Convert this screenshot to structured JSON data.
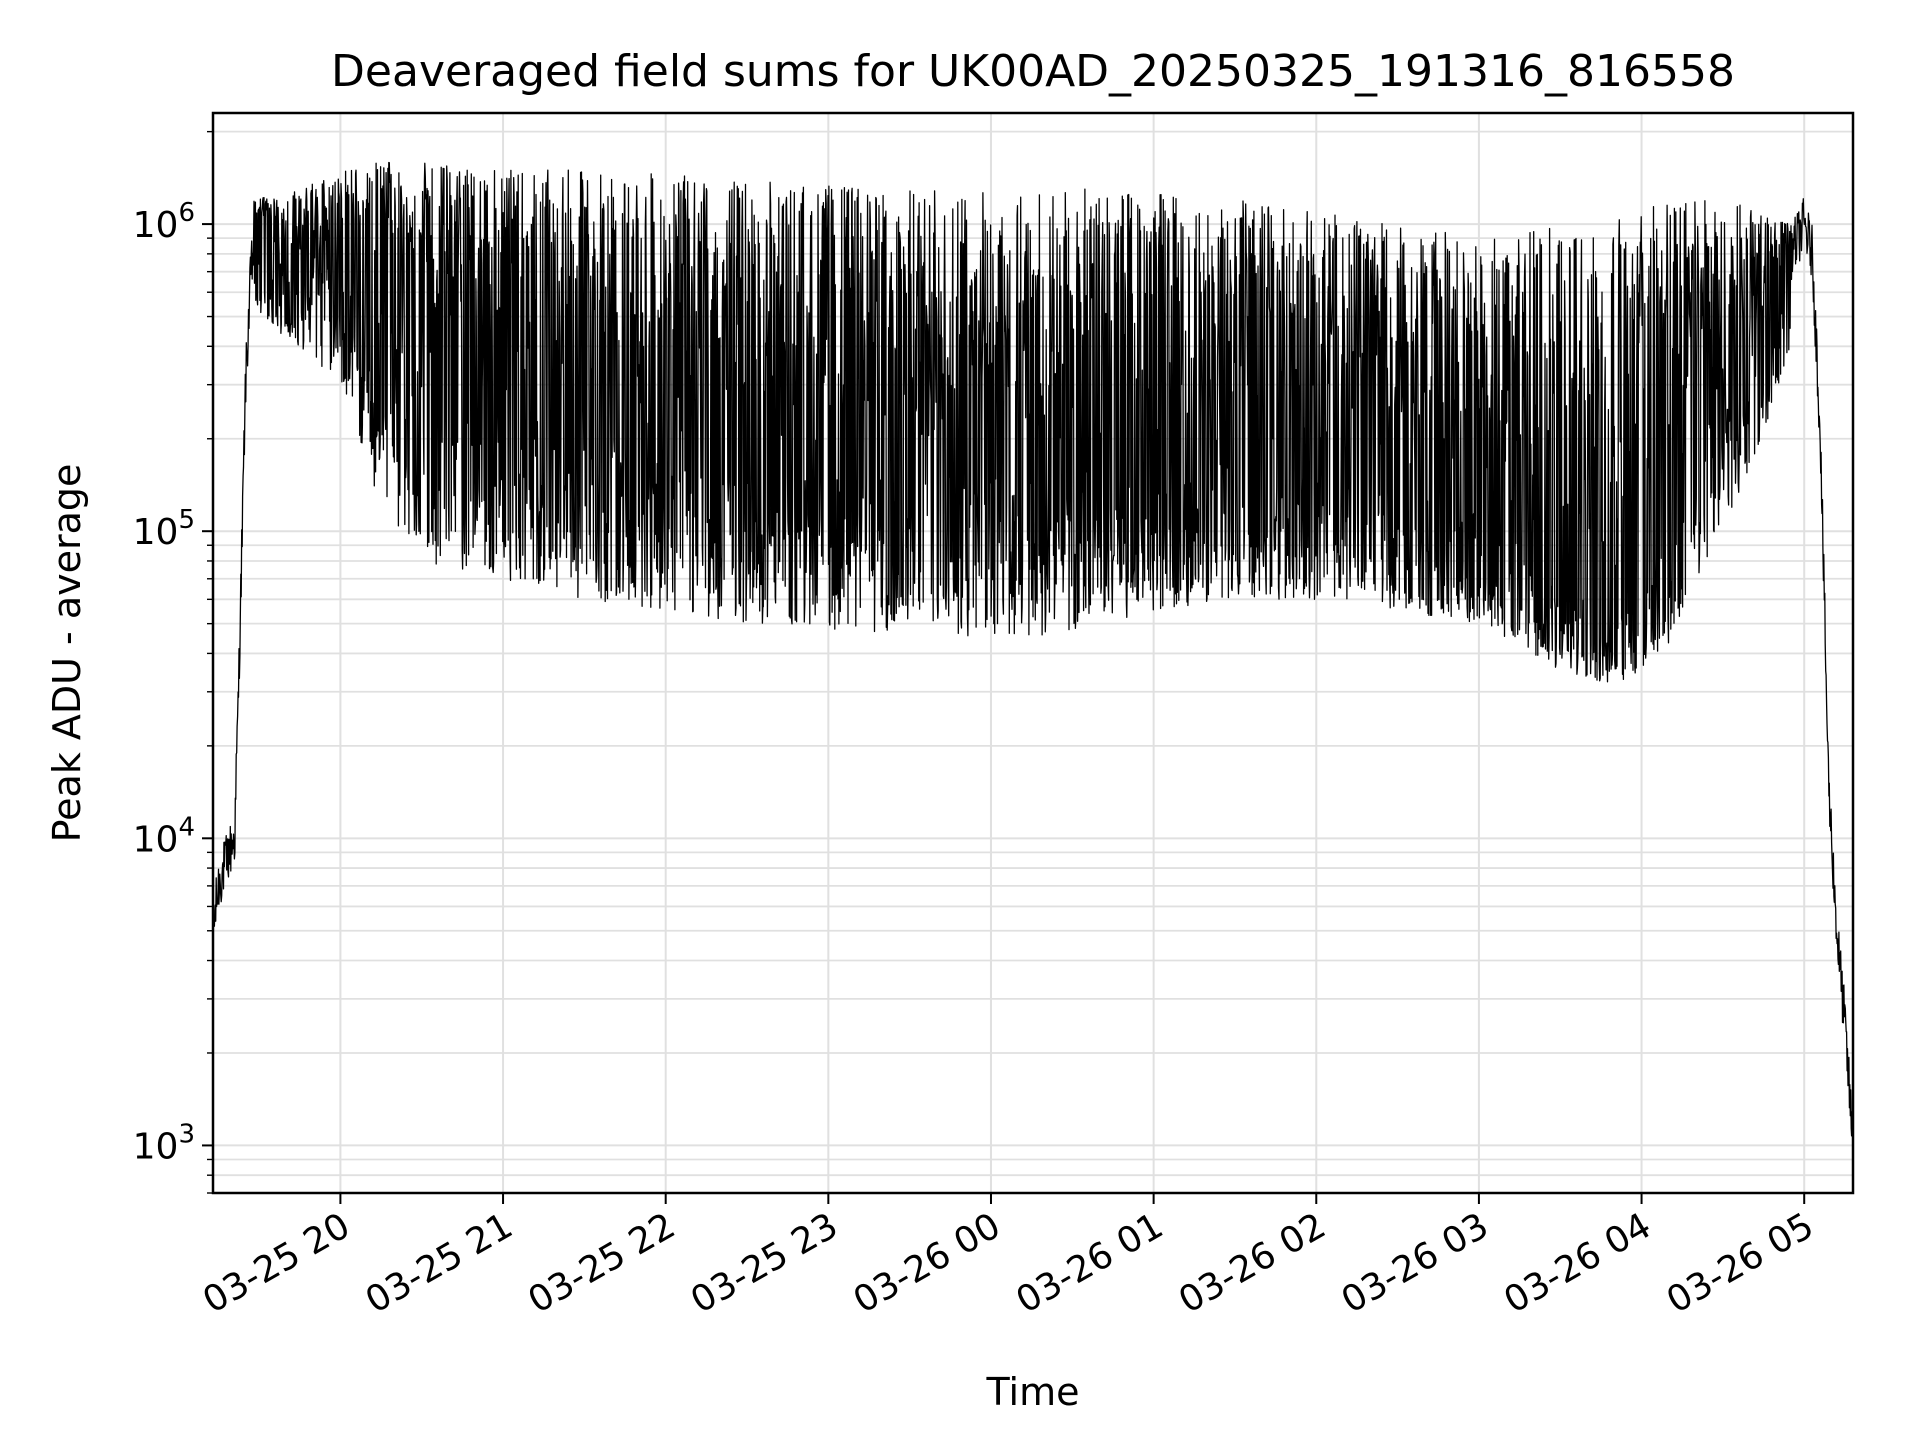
{
  "chart_data": {
    "type": "line",
    "title": "Deaveraged field sums for UK00AD_20250325_191316_816558",
    "xlabel": "Time",
    "ylabel": "Peak ADU - average",
    "y_scale": "log",
    "ylim": [
      700,
      2300000
    ],
    "xlim": [
      "2025-03-25 19:13",
      "2025-03-26 05:18"
    ],
    "grid": true,
    "legend": "none",
    "colors": {
      "line": "#000000",
      "grid": "#e0e0e0",
      "axes": "#000000"
    },
    "x_tick_labels": [
      "03-25 20",
      "03-25 21",
      "03-25 22",
      "03-25 23",
      "03-26 00",
      "03-26 01",
      "03-26 02",
      "03-26 03",
      "03-26 04",
      "03-26 05"
    ],
    "x_tick_values": [
      "2025-03-25 20:00",
      "2025-03-25 21:00",
      "2025-03-25 22:00",
      "2025-03-25 23:00",
      "2025-03-26 00:00",
      "2025-03-26 01:00",
      "2025-03-26 02:00",
      "2025-03-26 03:00",
      "2025-03-26 04:00",
      "2025-03-26 05:00"
    ],
    "y_ticks": [
      {
        "value": 1000,
        "base": "10",
        "exp": "3"
      },
      {
        "value": 10000,
        "base": "10",
        "exp": "4"
      },
      {
        "value": 100000,
        "base": "10",
        "exp": "5"
      },
      {
        "value": 1000000,
        "base": "10",
        "exp": "6"
      }
    ],
    "series": [
      {
        "color": "#000000",
        "x": [
          "2025-03-25 19:13",
          "2025-03-25 19:15",
          "2025-03-25 19:17",
          "2025-03-25 19:19",
          "2025-03-25 19:21",
          "2025-03-25 19:23",
          "2025-03-25 19:25",
          "2025-03-25 19:27",
          "2025-03-25 19:30",
          "2025-03-25 19:35",
          "2025-03-25 19:40",
          "2025-03-25 19:45",
          "2025-03-25 19:50",
          "2025-03-25 20:00",
          "2025-03-25 20:15",
          "2025-03-25 20:30",
          "2025-03-25 21:00",
          "2025-03-25 21:30",
          "2025-03-25 22:00",
          "2025-03-25 22:30",
          "2025-03-25 23:00",
          "2025-03-25 23:30",
          "2025-03-26 00:00",
          "2025-03-26 00:30",
          "2025-03-26 01:00",
          "2025-03-26 01:30",
          "2025-03-26 02:00",
          "2025-03-26 02:30",
          "2025-03-26 03:00",
          "2025-03-26 03:30",
          "2025-03-26 03:50",
          "2025-03-26 04:15",
          "2025-03-26 04:30",
          "2025-03-26 04:45",
          "2025-03-26 04:55",
          "2025-03-26 05:00",
          "2025-03-26 05:03",
          "2025-03-26 05:06",
          "2025-03-26 05:09",
          "2025-03-26 05:12",
          "2025-03-26 05:15",
          "2025-03-26 05:18"
        ],
        "y": [
          5000,
          7000,
          8000,
          9000,
          10000,
          50000,
          300000,
          700000,
          1100000,
          800000,
          500000,
          600000,
          800000,
          800000,
          600000,
          500000,
          350000,
          250000,
          200000,
          180000,
          170000,
          160000,
          160000,
          170000,
          180000,
          170000,
          170000,
          150000,
          120000,
          70000,
          55000,
          130000,
          300000,
          500000,
          800000,
          1000000,
          800000,
          200000,
          15000,
          5000,
          2500,
          1000
        ]
      }
    ],
    "noise_bands": [
      {
        "x": [
          "2025-03-25 19:28",
          "2025-03-25 19:45",
          "2025-03-25 20:00",
          "2025-03-25 20:15",
          "2025-03-25 20:30",
          "2025-03-25 21:00",
          "2025-03-25 21:30",
          "2025-03-25 22:00",
          "2025-03-25 22:30",
          "2025-03-25 23:00",
          "2025-03-25 23:30",
          "2025-03-26 00:00",
          "2025-03-26 00:30",
          "2025-03-26 01:00",
          "2025-03-26 01:30",
          "2025-03-26 02:00",
          "2025-03-26 02:30",
          "2025-03-26 03:00",
          "2025-03-26 03:30",
          "2025-03-26 03:50",
          "2025-03-26 04:10",
          "2025-03-26 04:30",
          "2025-03-26 04:45",
          "2025-03-26 04:55"
        ],
        "high": [
          1200000,
          1300000,
          1500000,
          1600000,
          1600000,
          1500000,
          1500000,
          1450000,
          1400000,
          1350000,
          1300000,
          1300000,
          1300000,
          1300000,
          1200000,
          1100000,
          1000000,
          900000,
          1000000,
          1100000,
          1200000,
          1200000,
          1100000,
          1000000
        ],
        "low": [
          500000,
          400000,
          300000,
          120000,
          80000,
          70000,
          60000,
          55000,
          50000,
          48000,
          46000,
          45000,
          46000,
          55000,
          60000,
          60000,
          55000,
          50000,
          35000,
          30000,
          40000,
          100000,
          200000,
          400000
        ]
      }
    ]
  }
}
